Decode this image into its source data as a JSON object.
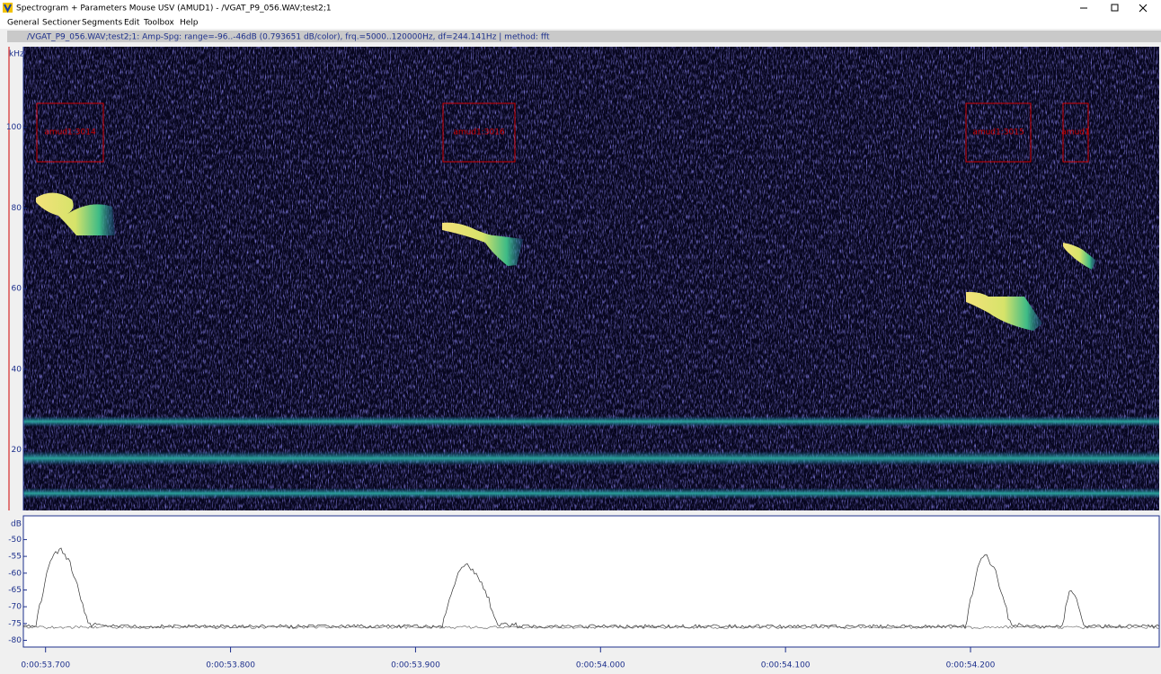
{
  "window": {
    "title": "Spectrogram + Parameters Mouse USV (AMUD1) - /VGAT_P9_056.WAV;test2;1"
  },
  "menu": [
    "General",
    "Sectioner",
    "Segments",
    "Edit",
    "Toolbox",
    "Help"
  ],
  "info": "/VGAT_P9_056.WAV;test2;1: Amp-Spg: range=-96..-46dB (0.793651 dB/color), frq.=5000..120000Hz, df=244.141Hz | method: fft",
  "spectrogram": {
    "unit": "kHz",
    "ylim": [
      5,
      120
    ],
    "yticks": [
      20,
      40,
      60,
      80,
      100
    ],
    "segments": [
      "amud1:3014",
      "amud1:3016",
      "amud1:3015",
      "amud1"
    ]
  },
  "envelope": {
    "unit": "dB",
    "ylim": [
      -82,
      -44
    ],
    "yticks": [
      -50,
      -55,
      -60,
      -65,
      -70,
      -75,
      -80
    ]
  },
  "time": {
    "xlim": [
      53.688,
      54.302
    ],
    "xticks": [
      {
        "value": 53.7,
        "label": "0:00:53.700"
      },
      {
        "value": 53.8,
        "label": "0:00:53.800"
      },
      {
        "value": 53.9,
        "label": "0:00:53.900"
      },
      {
        "value": 54.0,
        "label": "0:00:54.000"
      },
      {
        "value": 54.1,
        "label": "0:00:54.100"
      },
      {
        "value": 54.2,
        "label": "0:00:54.200"
      }
    ]
  }
}
